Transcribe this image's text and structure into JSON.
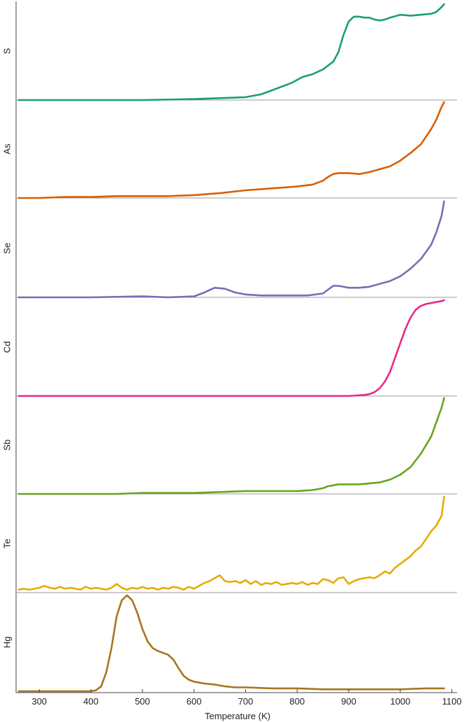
{
  "chart_data": {
    "type": "line",
    "layout": "stacked-panels",
    "xlabel": "Temperature (K)",
    "xlim": [
      255,
      1110
    ],
    "xticks": [
      300,
      400,
      500,
      600,
      700,
      800,
      900,
      1000,
      1100
    ],
    "grid": false,
    "legend": "none",
    "series": [
      {
        "name": "S",
        "color": "#1b9e77",
        "x": [
          260,
          300,
          400,
          500,
          600,
          650,
          700,
          730,
          760,
          790,
          810,
          830,
          850,
          870,
          880,
          890,
          900,
          910,
          920,
          930,
          940,
          950,
          960,
          970,
          980,
          1000,
          1020,
          1040,
          1060,
          1070,
          1080,
          1085
        ],
        "y": [
          0.0,
          0.0,
          0.0,
          0.0,
          0.01,
          0.02,
          0.03,
          0.06,
          0.12,
          0.18,
          0.24,
          0.27,
          0.32,
          0.4,
          0.5,
          0.68,
          0.82,
          0.87,
          0.87,
          0.86,
          0.86,
          0.84,
          0.83,
          0.84,
          0.86,
          0.89,
          0.88,
          0.89,
          0.9,
          0.92,
          0.97,
          1.0
        ]
      },
      {
        "name": "As",
        "color": "#d95f02",
        "x": [
          260,
          300,
          350,
          400,
          450,
          500,
          550,
          600,
          650,
          700,
          750,
          800,
          830,
          850,
          860,
          870,
          880,
          900,
          920,
          940,
          960,
          980,
          1000,
          1020,
          1040,
          1060,
          1070,
          1080,
          1085
        ],
        "y": [
          0.0,
          0.0,
          0.01,
          0.01,
          0.02,
          0.02,
          0.02,
          0.03,
          0.05,
          0.08,
          0.1,
          0.12,
          0.14,
          0.18,
          0.22,
          0.25,
          0.26,
          0.26,
          0.25,
          0.27,
          0.3,
          0.33,
          0.39,
          0.47,
          0.56,
          0.72,
          0.82,
          0.95,
          1.0
        ]
      },
      {
        "name": "Se",
        "color": "#7570b3",
        "x": [
          260,
          300,
          400,
          500,
          550,
          600,
          620,
          640,
          660,
          680,
          700,
          730,
          760,
          790,
          820,
          850,
          860,
          870,
          880,
          890,
          900,
          920,
          940,
          960,
          980,
          1000,
          1020,
          1040,
          1060,
          1070,
          1080,
          1085
        ],
        "y": [
          0.0,
          0.0,
          0.0,
          0.01,
          0.0,
          0.01,
          0.05,
          0.1,
          0.09,
          0.05,
          0.03,
          0.02,
          0.02,
          0.02,
          0.02,
          0.04,
          0.08,
          0.12,
          0.12,
          0.11,
          0.1,
          0.1,
          0.11,
          0.14,
          0.17,
          0.22,
          0.3,
          0.4,
          0.55,
          0.68,
          0.85,
          1.0
        ]
      },
      {
        "name": "Cd",
        "color": "#e7298a",
        "x": [
          260,
          400,
          600,
          800,
          900,
          930,
          940,
          950,
          960,
          970,
          980,
          990,
          1000,
          1010,
          1020,
          1030,
          1040,
          1050,
          1060,
          1070,
          1080,
          1085
        ],
        "y": [
          0.0,
          0.0,
          0.0,
          0.0,
          0.0,
          0.01,
          0.02,
          0.04,
          0.08,
          0.15,
          0.25,
          0.4,
          0.55,
          0.7,
          0.82,
          0.9,
          0.94,
          0.96,
          0.97,
          0.98,
          0.99,
          1.0
        ]
      },
      {
        "name": "Sb",
        "color": "#66a61e",
        "x": [
          260,
          300,
          400,
          450,
          500,
          550,
          600,
          650,
          700,
          750,
          800,
          830,
          850,
          860,
          870,
          880,
          900,
          920,
          940,
          960,
          980,
          1000,
          1020,
          1040,
          1060,
          1070,
          1080,
          1085
        ],
        "y": [
          0.0,
          0.0,
          0.0,
          0.0,
          0.01,
          0.01,
          0.01,
          0.02,
          0.03,
          0.03,
          0.03,
          0.04,
          0.06,
          0.08,
          0.09,
          0.1,
          0.1,
          0.1,
          0.11,
          0.12,
          0.15,
          0.2,
          0.28,
          0.42,
          0.6,
          0.75,
          0.9,
          1.0
        ]
      },
      {
        "name": "Te",
        "color": "#e6ab02",
        "x": [
          260,
          270,
          280,
          290,
          300,
          310,
          320,
          330,
          340,
          350,
          360,
          370,
          380,
          390,
          400,
          410,
          420,
          430,
          440,
          450,
          460,
          470,
          480,
          490,
          500,
          510,
          520,
          530,
          540,
          550,
          560,
          570,
          580,
          590,
          600,
          610,
          620,
          630,
          640,
          650,
          660,
          670,
          680,
          690,
          700,
          710,
          720,
          730,
          740,
          750,
          760,
          770,
          780,
          790,
          800,
          810,
          820,
          830,
          840,
          850,
          860,
          870,
          880,
          890,
          900,
          910,
          920,
          930,
          940,
          950,
          960,
          970,
          980,
          990,
          1000,
          1010,
          1020,
          1030,
          1040,
          1050,
          1060,
          1070,
          1080,
          1085
        ],
        "y": [
          0.03,
          0.04,
          0.03,
          0.04,
          0.05,
          0.07,
          0.05,
          0.04,
          0.06,
          0.04,
          0.05,
          0.04,
          0.03,
          0.06,
          0.04,
          0.05,
          0.04,
          0.03,
          0.05,
          0.09,
          0.05,
          0.03,
          0.05,
          0.04,
          0.06,
          0.04,
          0.05,
          0.03,
          0.05,
          0.04,
          0.06,
          0.05,
          0.03,
          0.06,
          0.04,
          0.07,
          0.1,
          0.12,
          0.15,
          0.18,
          0.12,
          0.11,
          0.12,
          0.1,
          0.13,
          0.09,
          0.12,
          0.08,
          0.1,
          0.09,
          0.11,
          0.08,
          0.09,
          0.1,
          0.09,
          0.11,
          0.08,
          0.1,
          0.09,
          0.14,
          0.13,
          0.1,
          0.15,
          0.16,
          0.09,
          0.12,
          0.14,
          0.15,
          0.16,
          0.15,
          0.18,
          0.22,
          0.2,
          0.26,
          0.3,
          0.34,
          0.38,
          0.44,
          0.48,
          0.56,
          0.64,
          0.7,
          0.8,
          1.0
        ]
      },
      {
        "name": "Hg",
        "color": "#a6761d",
        "x": [
          260,
          300,
          350,
          400,
          410,
          420,
          430,
          440,
          450,
          460,
          470,
          480,
          490,
          500,
          510,
          520,
          530,
          540,
          550,
          560,
          570,
          580,
          590,
          600,
          610,
          620,
          640,
          660,
          680,
          700,
          750,
          800,
          850,
          900,
          950,
          1000,
          1050,
          1085
        ],
        "y": [
          0.0,
          0.0,
          0.0,
          0.0,
          0.01,
          0.05,
          0.2,
          0.45,
          0.78,
          0.95,
          1.0,
          0.95,
          0.82,
          0.65,
          0.52,
          0.45,
          0.42,
          0.4,
          0.38,
          0.33,
          0.24,
          0.16,
          0.12,
          0.1,
          0.09,
          0.08,
          0.07,
          0.05,
          0.04,
          0.04,
          0.03,
          0.03,
          0.02,
          0.02,
          0.02,
          0.02,
          0.03,
          0.03
        ]
      }
    ]
  }
}
